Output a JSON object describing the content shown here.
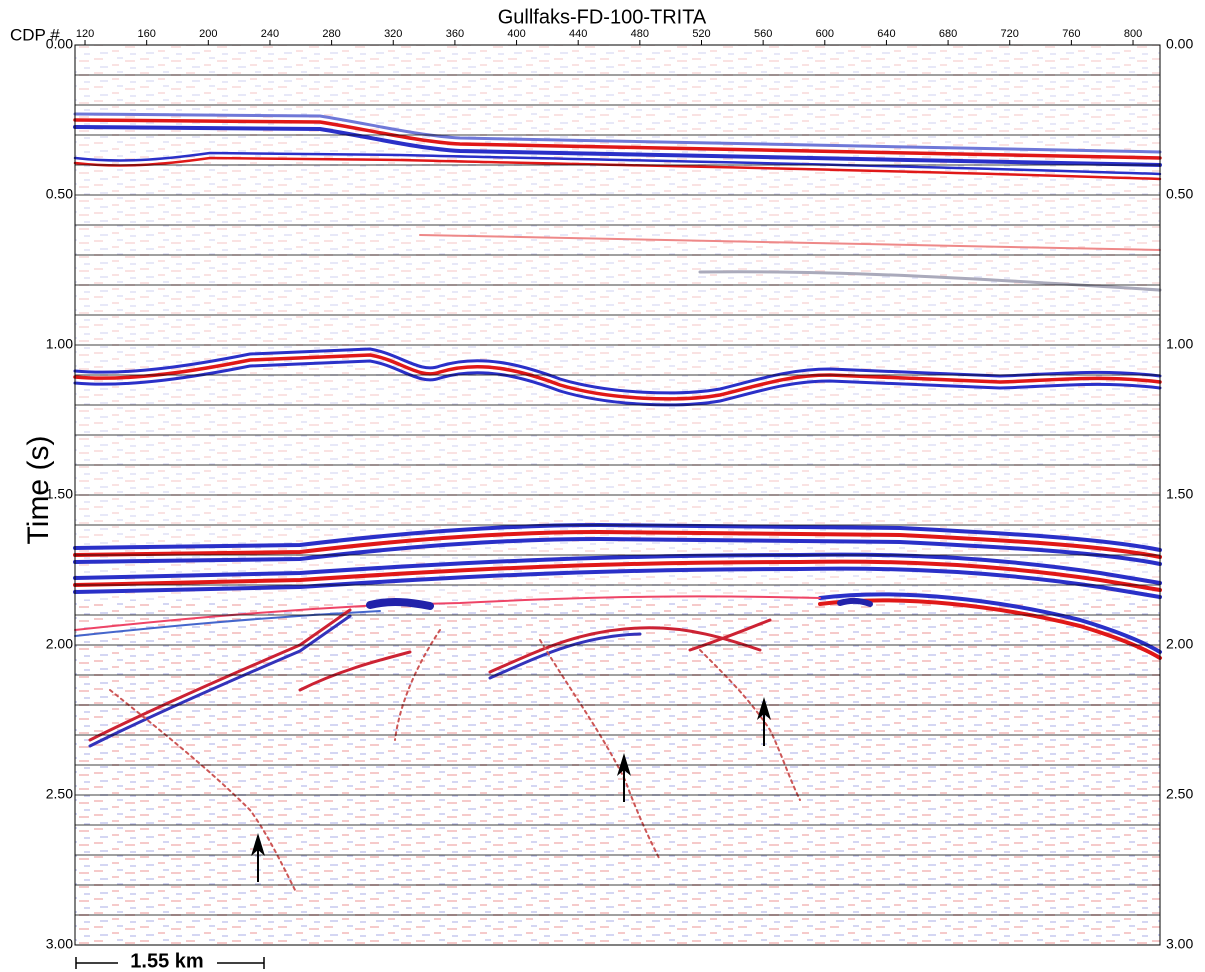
{
  "chart_data": {
    "type": "seismic-section",
    "title": "Gullfaks-FD-100-TRITA",
    "x_label": "CDP #",
    "y_label": "Time (s)",
    "xlim": [
      113.5,
      817.5
    ],
    "xticks": [
      120,
      160,
      200,
      240,
      280,
      320,
      360,
      400,
      440,
      480,
      520,
      560,
      600,
      640,
      680,
      720,
      760,
      800
    ],
    "ylim": [
      0,
      3
    ],
    "yticks": [
      {
        "value": 0,
        "label": "0.00"
      },
      {
        "value": 0.5,
        "label": "0.50"
      },
      {
        "value": 1,
        "label": "1.00"
      },
      {
        "value": 1.5,
        "label": "1.50"
      },
      {
        "value": 2,
        "label": "2.00"
      },
      {
        "value": 2.5,
        "label": "2.50"
      },
      {
        "value": 3,
        "label": "3.00"
      }
    ],
    "minor_yticks": [
      0.1,
      0.2,
      0.3,
      0.4,
      0.6,
      0.7,
      0.8,
      0.9,
      1.1,
      1.2,
      1.3,
      1.4,
      1.6,
      1.7,
      1.8,
      1.9,
      2.1,
      2.2,
      2.3,
      2.4,
      2.6,
      2.7,
      2.8,
      2.9
    ],
    "y_inverted": true,
    "grid": true,
    "scale_bar": "1.55 km"
  }
}
